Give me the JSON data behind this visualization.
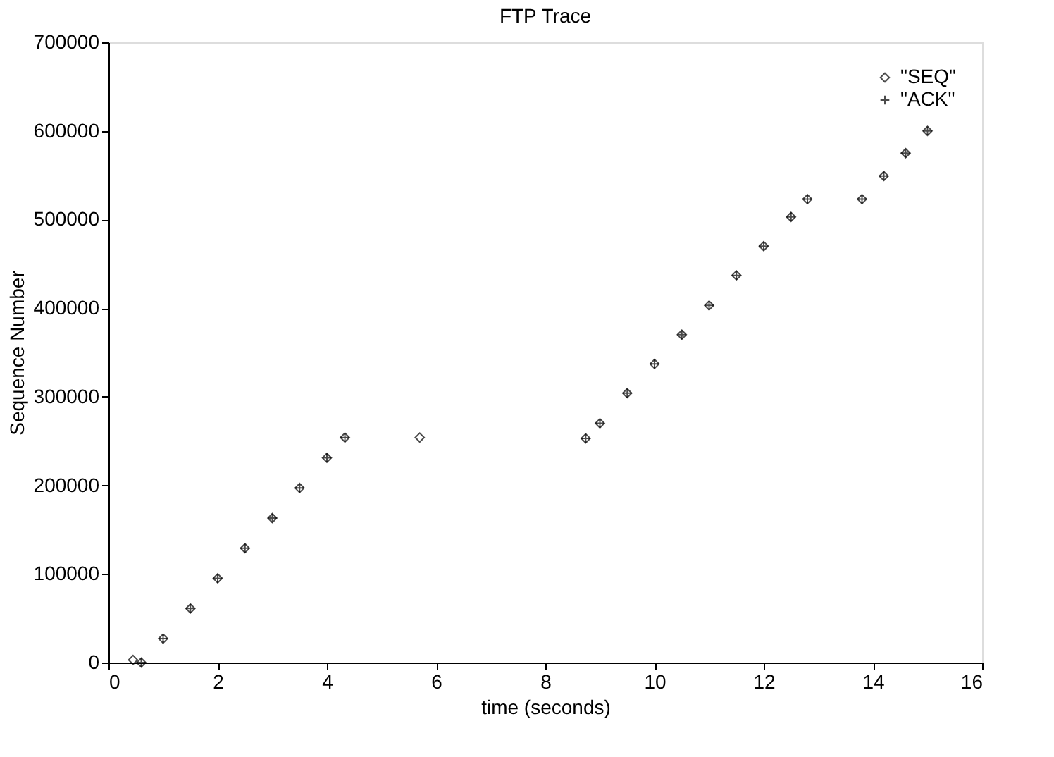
{
  "chart_data": {
    "type": "scatter",
    "title": "FTP Trace",
    "xlabel": "time (seconds)",
    "ylabel": "Sequence Number",
    "xlim": [
      0,
      16
    ],
    "xticks": [
      0,
      2,
      4,
      6,
      8,
      10,
      12,
      14,
      16
    ],
    "ylim": [
      0,
      700000
    ],
    "yticks": [
      0,
      100000,
      200000,
      300000,
      400000,
      500000,
      600000,
      700000
    ],
    "grid": false,
    "legend": "top right",
    "series": [
      {
        "name": "\"SEQ\"",
        "color": "#000000",
        "marker": "diamond",
        "x": [
          0.45,
          0.6,
          1.0,
          1.5,
          2.0,
          2.5,
          3.0,
          3.5,
          4.0,
          4.33,
          5.7,
          8.74,
          9.0,
          9.5,
          10.0,
          10.5,
          11.0,
          11.5,
          12.0,
          12.5,
          12.8,
          13.8,
          14.2,
          14.6,
          15.0
        ],
        "values": [
          3000,
          0,
          27000,
          61000,
          95000,
          129000,
          163000,
          197000,
          231000,
          254000,
          254000,
          253000,
          270000,
          304000,
          337000,
          370000,
          403000,
          437000,
          470000,
          503000,
          523000,
          523000,
          549000,
          575000,
          600000
        ]
      },
      {
        "name": "\"ACK\"",
        "color": "#000000",
        "marker": "cross",
        "x": [
          0.6,
          1.0,
          1.5,
          2.0,
          2.5,
          3.0,
          3.5,
          4.0,
          4.33,
          8.74,
          9.0,
          9.5,
          10.0,
          10.5,
          11.0,
          11.5,
          12.0,
          12.5,
          12.8,
          13.8,
          14.2,
          14.6,
          15.0
        ],
        "values": [
          0,
          27000,
          61000,
          95000,
          129000,
          163000,
          197000,
          231000,
          254000,
          253000,
          270000,
          304000,
          337000,
          370000,
          403000,
          437000,
          470000,
          503000,
          523000,
          523000,
          549000,
          575000,
          600000
        ]
      }
    ]
  }
}
